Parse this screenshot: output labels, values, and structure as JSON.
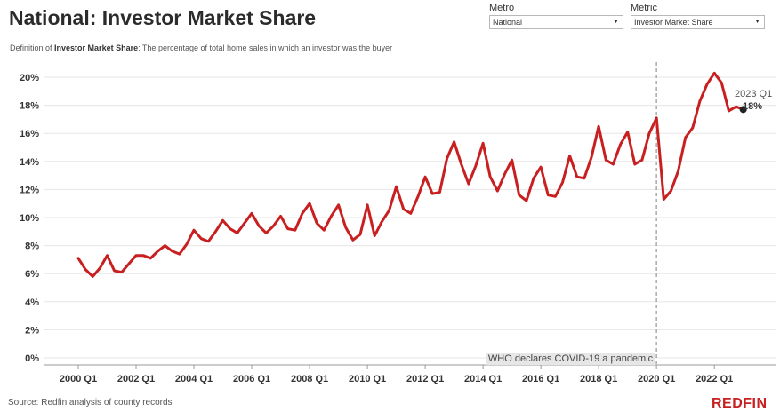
{
  "header": {
    "title": "National: Investor Market Share",
    "definition_prefix": "Definition of",
    "definition_term": "Investor Market Share",
    "definition_text": ": The percentage of total home sales in which an investor was the buyer"
  },
  "filters": {
    "metro": {
      "label": "Metro",
      "value": "National"
    },
    "metric": {
      "label": "Metric",
      "value": "Investor Market Share"
    }
  },
  "footer": {
    "source": "Source: Redfin analysis of county records",
    "brand": "REDFIN"
  },
  "colors": {
    "line": "#c82021",
    "marker": "#222222",
    "grid": "#e6e6e6",
    "annotation_line": "#aaaaaa"
  },
  "chart_data": {
    "type": "line",
    "title": "National: Investor Market Share",
    "x_tick_labels": [
      "2000 Q1",
      "2002 Q1",
      "2004 Q1",
      "2006 Q1",
      "2008 Q1",
      "2010 Q1",
      "2012 Q1",
      "2014 Q1",
      "2016 Q1",
      "2018 Q1",
      "2020 Q1",
      "2022 Q1"
    ],
    "y_tick_labels": [
      "0%",
      "2%",
      "4%",
      "6%",
      "8%",
      "10%",
      "12%",
      "14%",
      "16%",
      "18%",
      "20%"
    ],
    "ylim": [
      0,
      20.5
    ],
    "y_unit": "%",
    "grid": "horizontal",
    "series": [
      {
        "x": [
          "2000 Q1",
          "2000 Q2",
          "2000 Q3",
          "2000 Q4",
          "2001 Q1",
          "2001 Q2",
          "2001 Q3",
          "2001 Q4",
          "2002 Q1",
          "2002 Q2",
          "2002 Q3",
          "2002 Q4",
          "2003 Q1",
          "2003 Q2",
          "2003 Q3",
          "2003 Q4",
          "2004 Q1",
          "2004 Q2",
          "2004 Q3",
          "2004 Q4",
          "2005 Q1",
          "2005 Q2",
          "2005 Q3",
          "2005 Q4",
          "2006 Q1",
          "2006 Q2",
          "2006 Q3",
          "2006 Q4",
          "2007 Q1",
          "2007 Q2",
          "2007 Q3",
          "2007 Q4",
          "2008 Q1",
          "2008 Q2",
          "2008 Q3",
          "2008 Q4",
          "2009 Q1",
          "2009 Q2",
          "2009 Q3",
          "2009 Q4",
          "2010 Q1",
          "2010 Q2",
          "2010 Q3",
          "2010 Q4",
          "2011 Q1",
          "2011 Q2",
          "2011 Q3",
          "2011 Q4",
          "2012 Q1",
          "2012 Q2",
          "2012 Q3",
          "2012 Q4",
          "2013 Q1",
          "2013 Q2",
          "2013 Q3",
          "2013 Q4",
          "2014 Q1",
          "2014 Q2",
          "2014 Q3",
          "2014 Q4",
          "2015 Q1",
          "2015 Q2",
          "2015 Q3",
          "2015 Q4",
          "2016 Q1",
          "2016 Q2",
          "2016 Q3",
          "2016 Q4",
          "2017 Q1",
          "2017 Q2",
          "2017 Q3",
          "2017 Q4",
          "2018 Q1",
          "2018 Q2",
          "2018 Q3",
          "2018 Q4",
          "2019 Q1",
          "2019 Q2",
          "2019 Q3",
          "2019 Q4",
          "2020 Q1",
          "2020 Q2",
          "2020 Q3",
          "2020 Q4",
          "2021 Q1",
          "2021 Q2",
          "2021 Q3",
          "2021 Q4",
          "2022 Q1",
          "2022 Q2",
          "2022 Q3",
          "2022 Q4",
          "2023 Q1"
        ],
        "values": [
          7.1,
          6.3,
          5.8,
          6.4,
          7.3,
          6.2,
          6.1,
          6.7,
          7.3,
          7.3,
          7.1,
          7.6,
          8.0,
          7.6,
          7.4,
          8.1,
          9.1,
          8.5,
          8.3,
          9.0,
          9.8,
          9.2,
          8.9,
          9.6,
          10.3,
          9.4,
          8.9,
          9.4,
          10.1,
          9.2,
          9.1,
          10.3,
          11.0,
          9.6,
          9.1,
          10.1,
          10.9,
          9.3,
          8.4,
          8.8,
          10.9,
          8.7,
          9.7,
          10.5,
          12.2,
          10.6,
          10.3,
          11.5,
          12.9,
          11.7,
          11.8,
          14.2,
          15.4,
          13.8,
          12.4,
          13.7,
          15.3,
          12.9,
          11.9,
          13.1,
          14.1,
          11.6,
          11.2,
          12.8,
          13.6,
          11.6,
          11.5,
          12.5,
          14.4,
          12.9,
          12.8,
          14.3,
          16.5,
          14.1,
          13.8,
          15.2,
          16.1,
          13.8,
          14.1,
          16.0,
          17.1,
          11.3,
          11.9,
          13.3,
          15.7,
          16.4,
          18.3,
          19.5,
          20.3,
          19.6,
          17.6,
          17.9,
          17.7
        ]
      }
    ],
    "annotations": [
      {
        "x": "2020 Q1",
        "text": "WHO declares COVID-19 a pandemic"
      },
      {
        "x": "2023 Q1",
        "text": "2023 Q1",
        "value_text": "18%"
      }
    ]
  }
}
